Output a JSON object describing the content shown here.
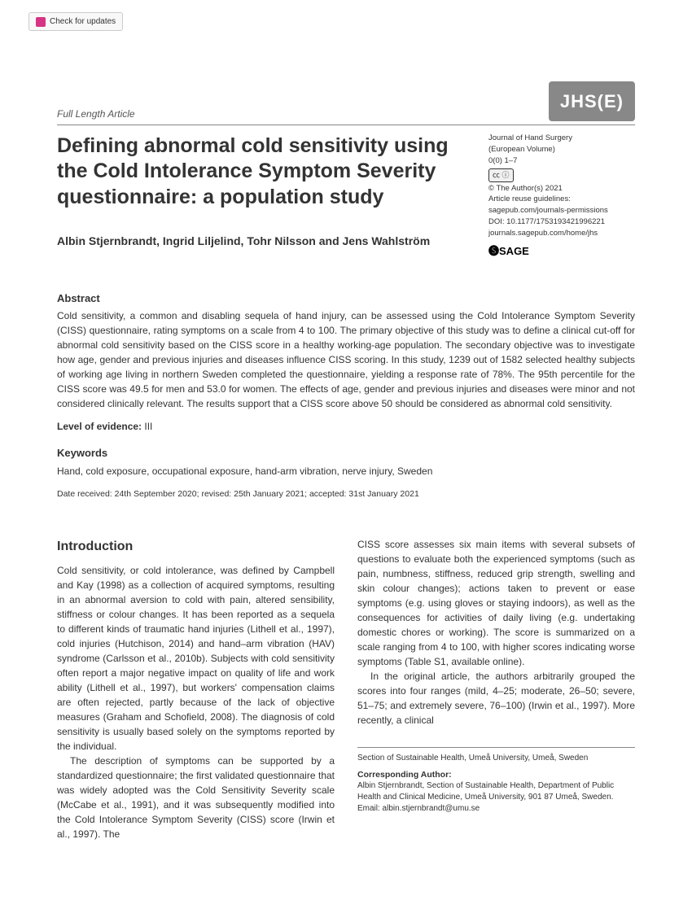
{
  "checkUpdates": {
    "label": "Check for updates"
  },
  "header": {
    "articleType": "Full Length Article",
    "journalLogo": "JHS(E)"
  },
  "title": "Defining abnormal cold sensitivity using the Cold Intolerance Symptom Severity questionnaire: a population study",
  "authors": "Albin Stjernbrandt, Ingrid Liljelind, Tohr Nilsson and Jens Wahlström",
  "meta": {
    "journalName": "Journal of Hand Surgery",
    "edition": "(European Volume)",
    "pages": "0(0) 1–7",
    "ccBadge": "㏄ ⓘ",
    "copyright": "© The Author(s) 2021",
    "reuse": "Article reuse guidelines:",
    "reuseUrl": "sagepub.com/journals-permissions",
    "doi": "DOI: 10.1177/1753193421996221",
    "journalUrl": "journals.sagepub.com/home/jhs",
    "publisher": "SAGE"
  },
  "abstract": {
    "label": "Abstract",
    "text": "Cold sensitivity, a common and disabling sequela of hand injury, can be assessed using the Cold Intolerance Symptom Severity (CISS) questionnaire, rating symptoms on a scale from 4 to 100. The primary objective of this study was to define a clinical cut-off for abnormal cold sensitivity based on the CISS score in a healthy working-age population. The secondary objective was to investigate how age, gender and previous injuries and diseases influence CISS scoring. In this study, 1239 out of 1582 selected healthy subjects of working age living in northern Sweden completed the questionnaire, yielding a response rate of 78%. The 95th percentile for the CISS score was 49.5 for men and 53.0 for women. The effects of age, gender and previous injuries and diseases were minor and not considered clinically relevant. The results support that a CISS score above 50 should be considered as abnormal cold sensitivity."
  },
  "evidence": {
    "label": "Level of evidence:",
    "value": "III"
  },
  "keywords": {
    "label": "Keywords",
    "text": "Hand, cold exposure, occupational exposure, hand-arm vibration, nerve injury, Sweden"
  },
  "dates": "Date received: 24th September 2020; revised: 25th January 2021; accepted: 31st January 2021",
  "body": {
    "introHeading": "Introduction",
    "col1p1": "Cold sensitivity, or cold intolerance, was defined by Campbell and Kay (1998) as a collection of acquired symptoms, resulting in an abnormal aversion to cold with pain, altered sensibility, stiffness or colour changes. It has been reported as a sequela to different kinds of traumatic hand injuries (Lithell et al., 1997), cold injuries (Hutchison, 2014) and hand–arm vibration (HAV) syndrome (Carlsson et al., 2010b). Subjects with cold sensitivity often report a major negative impact on quality of life and work ability (Lithell et al., 1997), but workers' compensation claims are often rejected, partly because of the lack of objective measures (Graham and Schofield, 2008). The diagnosis of cold sensitivity is usually based solely on the symptoms reported by the individual.",
    "col1p2": "The description of symptoms can be supported by a standardized questionnaire; the first validated questionnaire that was widely adopted was the Cold Sensitivity Severity scale (McCabe et al., 1991), and it was subsequently modified into the Cold Intolerance Symptom Severity (CISS) score (Irwin et al., 1997). The",
    "col2p1": "CISS score assesses six main items with several subsets of questions to evaluate both the experienced symptoms (such as pain, numbness, stiffness, reduced grip strength, swelling and skin colour changes); actions taken to prevent or ease symptoms (e.g. using gloves or staying indoors), as well as the consequences for activities of daily living (e.g. undertaking domestic chores or working). The score is summarized on a scale ranging from 4 to 100, with higher scores indicating worse symptoms (Table S1, available online).",
    "col2p2": "In the original article, the authors arbitrarily grouped the scores into four ranges (mild, 4–25; moderate, 26–50; severe, 51–75; and extremely severe, 76–100) (Irwin et al., 1997). More recently, a clinical"
  },
  "affil": {
    "section": "Section of Sustainable Health, Umeå University, Umeå, Sweden",
    "corrLabel": "Corresponding Author:",
    "corrText": "Albin Stjernbrandt, Section of Sustainable Health, Department of Public Health and Clinical Medicine, Umeå University, 901 87 Umeå, Sweden.",
    "email": "Email: albin.stjernbrandt@umu.se"
  }
}
